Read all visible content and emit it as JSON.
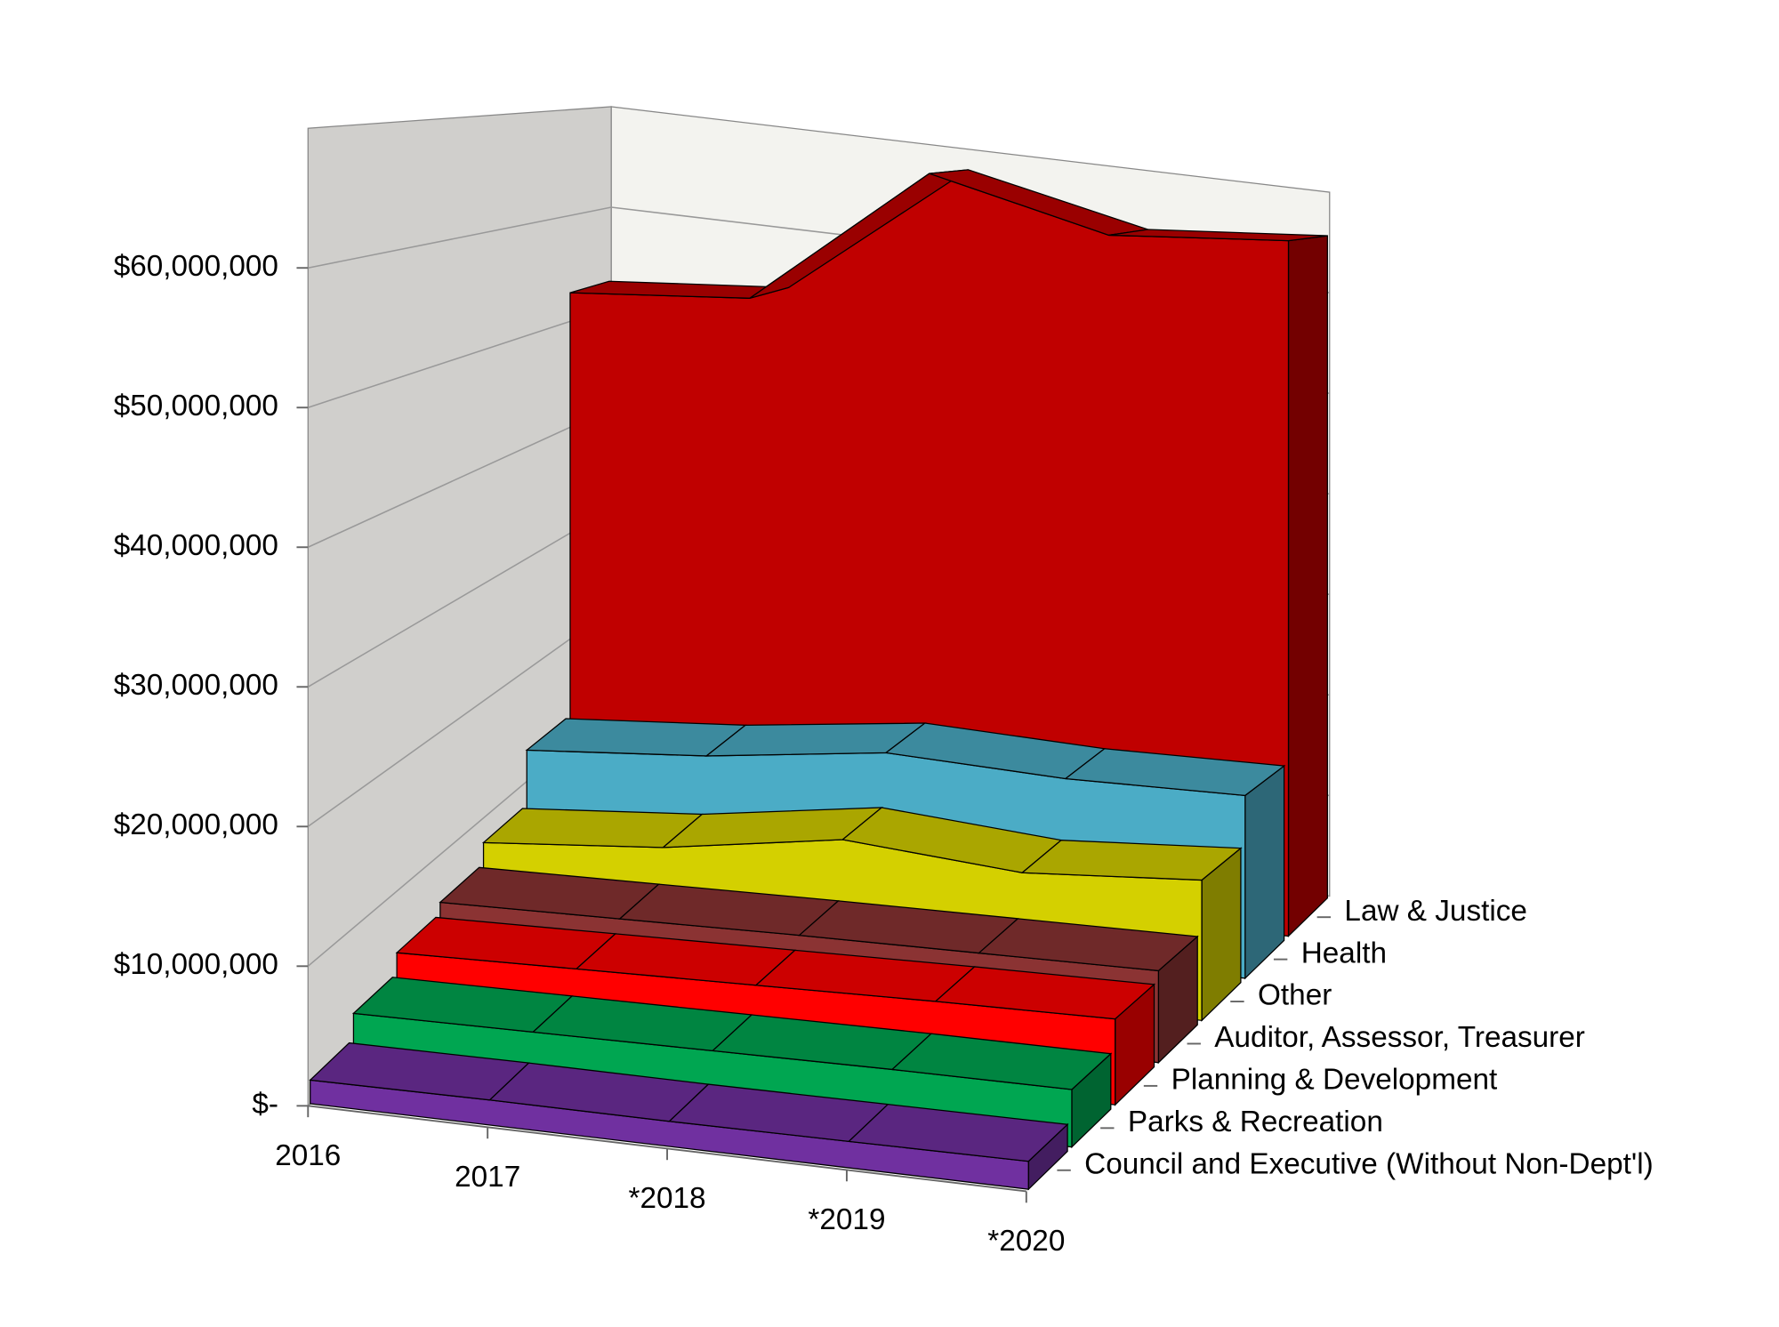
{
  "chart_data": {
    "type": "area3d",
    "categories": [
      "2016",
      "2017",
      "*2018",
      "*2019",
      "*2020"
    ],
    "series": [
      {
        "name": "Council and Executive (Without Non-Dept'l)",
        "color": "#7030a0",
        "values": [
          1700000,
          1800000,
          1800000,
          1900000,
          2000000
        ]
      },
      {
        "name": "Parks & Recreation",
        "color": "#00a651",
        "values": [
          3600000,
          3800000,
          4000000,
          4200000,
          4300000
        ]
      },
      {
        "name": "Planning & Development",
        "color": "#ff0000",
        "values": [
          5200000,
          5600000,
          6000000,
          6400000,
          6700000
        ]
      },
      {
        "name": "Auditor, Assessor, Treasurer",
        "color": "#8b3333",
        "values": [
          6100000,
          6500000,
          6900000,
          7200000,
          7500000
        ]
      },
      {
        "name": "Other",
        "color": "#d4d000",
        "values": [
          7900000,
          9300000,
          11800000,
          10800000,
          12000000
        ]
      },
      {
        "name": "Health",
        "color": "#4bacc6",
        "values": [
          12800000,
          14200000,
          16400000,
          16000000,
          16400000
        ]
      },
      {
        "name": "Law & Justice",
        "color": "#c00000",
        "values": [
          52700000,
          54200000,
          68000000,
          64200000,
          65700000
        ]
      }
    ],
    "ylim": [
      0,
      70000000
    ],
    "yticks": [
      {
        "value": 0,
        "label": "$-"
      },
      {
        "value": 10000000,
        "label": "$10,000,000"
      },
      {
        "value": 20000000,
        "label": "$20,000,000"
      },
      {
        "value": 30000000,
        "label": "$30,000,000"
      },
      {
        "value": 40000000,
        "label": "$40,000,000"
      },
      {
        "value": 50000000,
        "label": "$50,000,000"
      },
      {
        "value": 60000000,
        "label": "$60,000,000"
      }
    ],
    "grid": true
  }
}
